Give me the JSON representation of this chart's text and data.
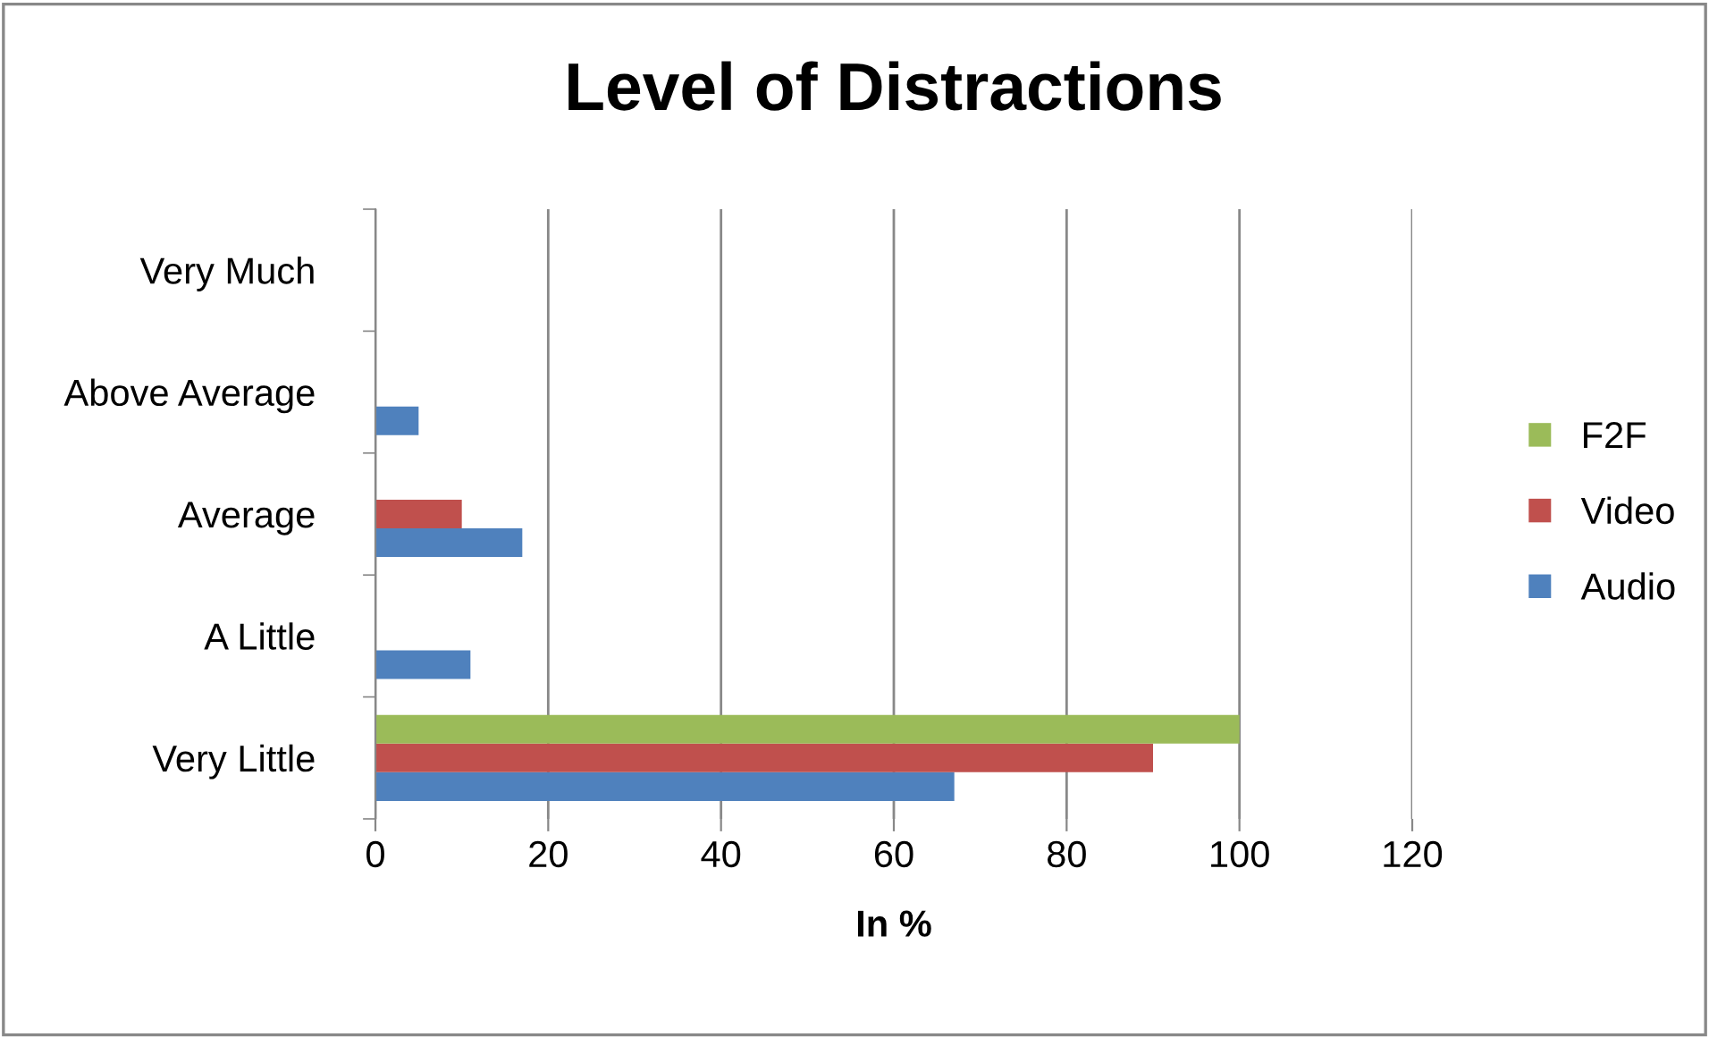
{
  "chart_data": {
    "type": "bar",
    "orientation": "horizontal",
    "title": "Level of Distractions",
    "xlabel": "In %",
    "categories": [
      "Very Much",
      "Above Average",
      "Average",
      "A Little",
      "Very Little"
    ],
    "series": [
      {
        "name": "Audio",
        "color": "#4f81bd",
        "values": [
          0,
          5,
          17,
          11,
          67
        ]
      },
      {
        "name": "Video",
        "color": "#c0504d",
        "values": [
          0,
          0,
          10,
          0,
          90
        ]
      },
      {
        "name": "F2F",
        "color": "#9bbb59",
        "values": [
          0,
          0,
          0,
          0,
          100
        ]
      }
    ],
    "xlim": [
      0,
      120
    ],
    "xticks": [
      0,
      20,
      40,
      60,
      80,
      100,
      120
    ],
    "grid": "x",
    "legend": "right"
  }
}
